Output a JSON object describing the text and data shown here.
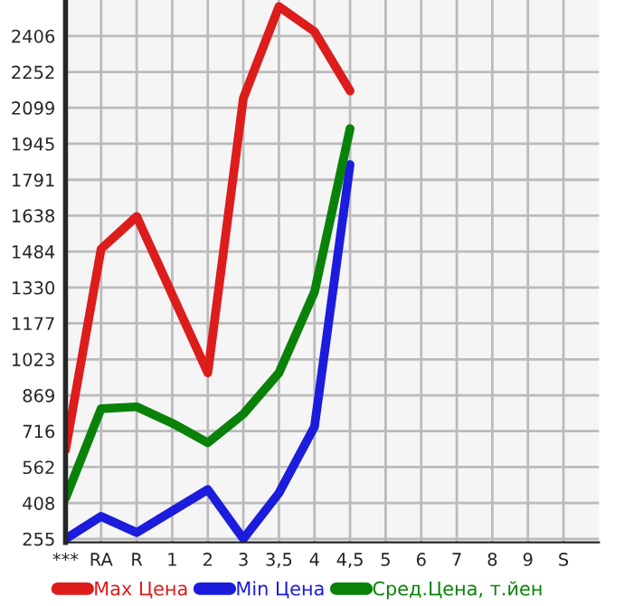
{
  "chart_data": {
    "type": "line",
    "categories": [
      "***",
      "RA",
      "R",
      "1",
      "2",
      "3",
      "3,5",
      "4",
      "4,5",
      "5",
      "6",
      "7",
      "8",
      "9",
      "S"
    ],
    "series": [
      {
        "name": "Max Цена",
        "color": "#dd1c1c",
        "values": [
          635,
          1495,
          1634,
          1300,
          965,
          2140,
          2532,
          2425,
          2171,
          null,
          null,
          null,
          null,
          null,
          null
        ]
      },
      {
        "name": "Min Цена",
        "color": "#1c1cdd",
        "values": [
          255,
          351,
          282,
          374,
          466,
          255,
          451,
          735,
          1856,
          null,
          null,
          null,
          null,
          null,
          null
        ]
      },
      {
        "name": "Сред.Цена, т.йен",
        "color": "#0a820a",
        "values": [
          428,
          812,
          820,
          750,
          666,
          789,
          965,
          1311,
          2010,
          null,
          null,
          null,
          null,
          null,
          null
        ]
      }
    ],
    "ylim": [
      240,
      2560
    ],
    "yticks": [
      255,
      408,
      562,
      716,
      869,
      1023,
      1177,
      1330,
      1484,
      1638,
      1791,
      1945,
      2099,
      2252,
      2406
    ],
    "grid": true,
    "legend": "bottom",
    "line_style": "solid",
    "marker": "none"
  }
}
